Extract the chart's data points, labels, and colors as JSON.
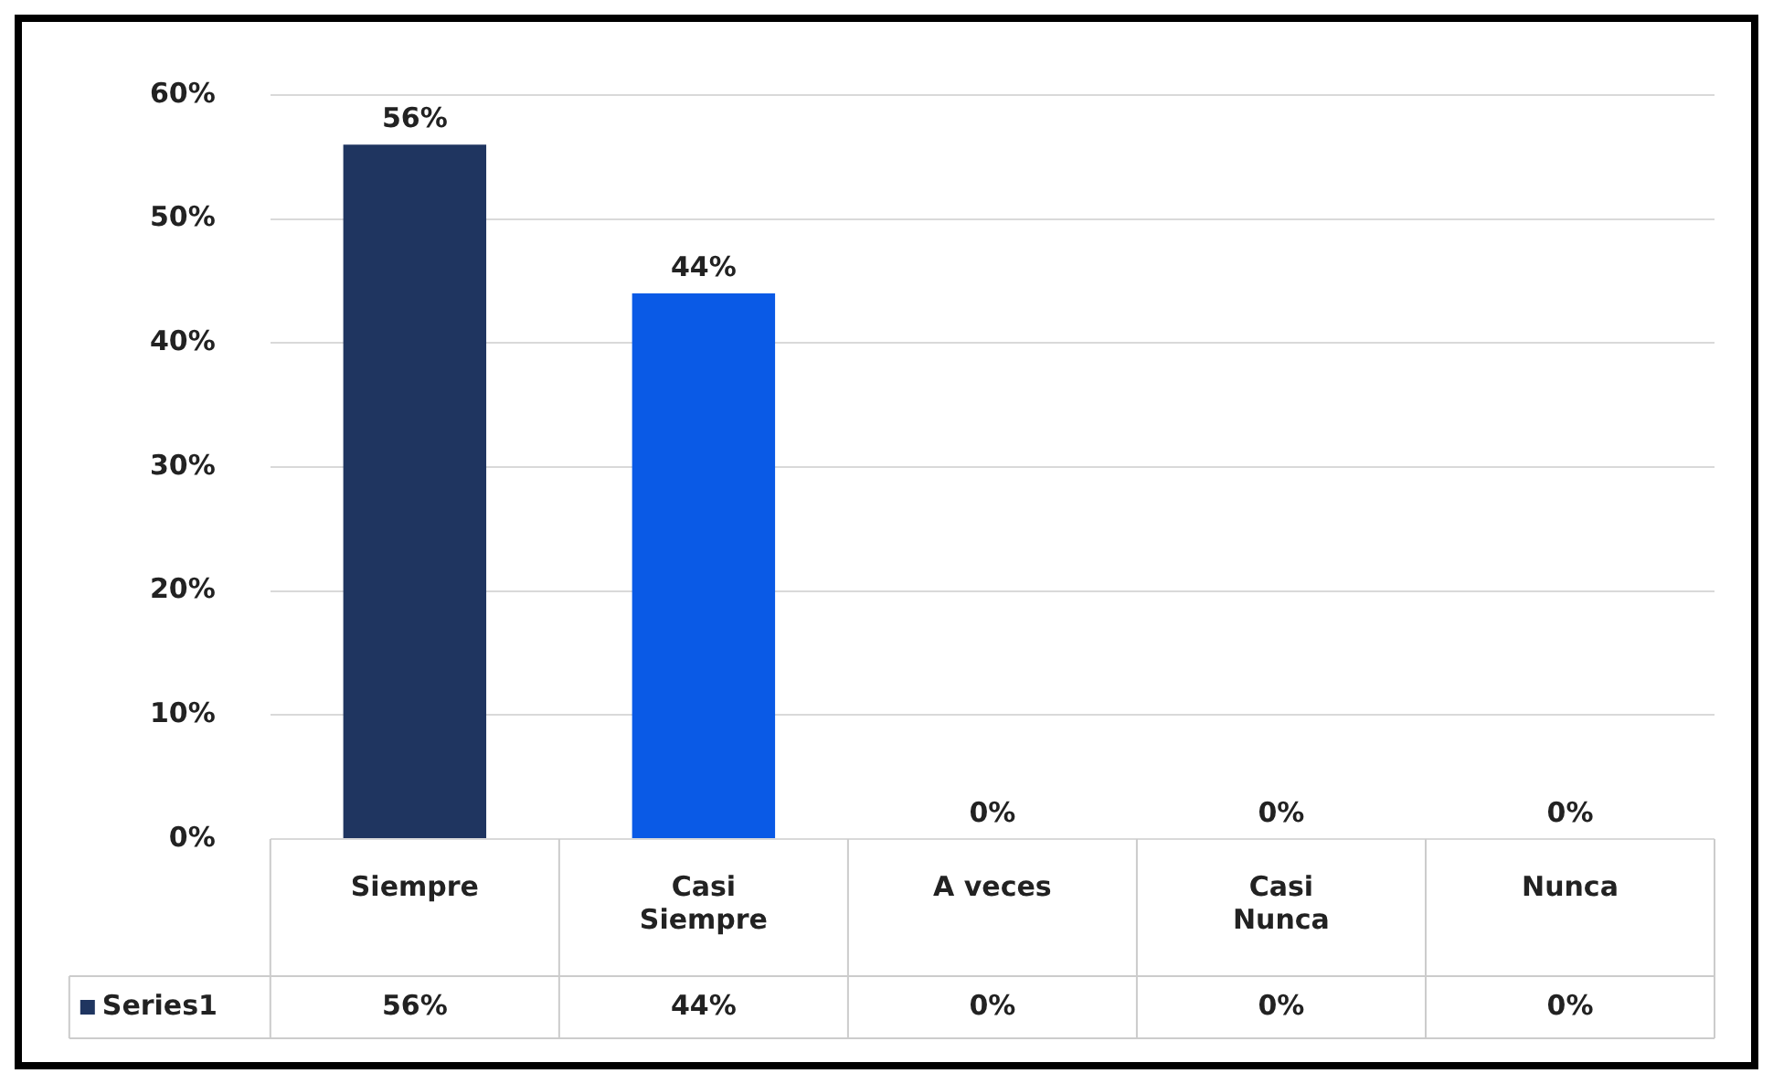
{
  "chart_data": {
    "type": "bar",
    "categories": [
      "Siempre",
      "Casi Siempre",
      "A veces",
      "Casi Nunca",
      "Nunca"
    ],
    "series": [
      {
        "name": "Series1",
        "colors": [
          "#1f3560",
          "#0a5ae6",
          "#3b82c4",
          "#8e8fa3",
          "#4a4a4a"
        ],
        "values": [
          56,
          44,
          0,
          0,
          0
        ],
        "value_labels": [
          "56%",
          "44%",
          "0%",
          "0%",
          "0%"
        ]
      }
    ],
    "ylim": [
      0,
      60
    ],
    "yticks": [
      {
        "value": 0,
        "label": "0%"
      },
      {
        "value": 10,
        "label": "10%"
      },
      {
        "value": 20,
        "label": "20%"
      },
      {
        "value": 30,
        "label": "30%"
      },
      {
        "value": 40,
        "label": "40%"
      },
      {
        "value": 50,
        "label": "50%"
      },
      {
        "value": 60,
        "label": "60%"
      }
    ],
    "grid": "y",
    "legend": "bottom left"
  }
}
